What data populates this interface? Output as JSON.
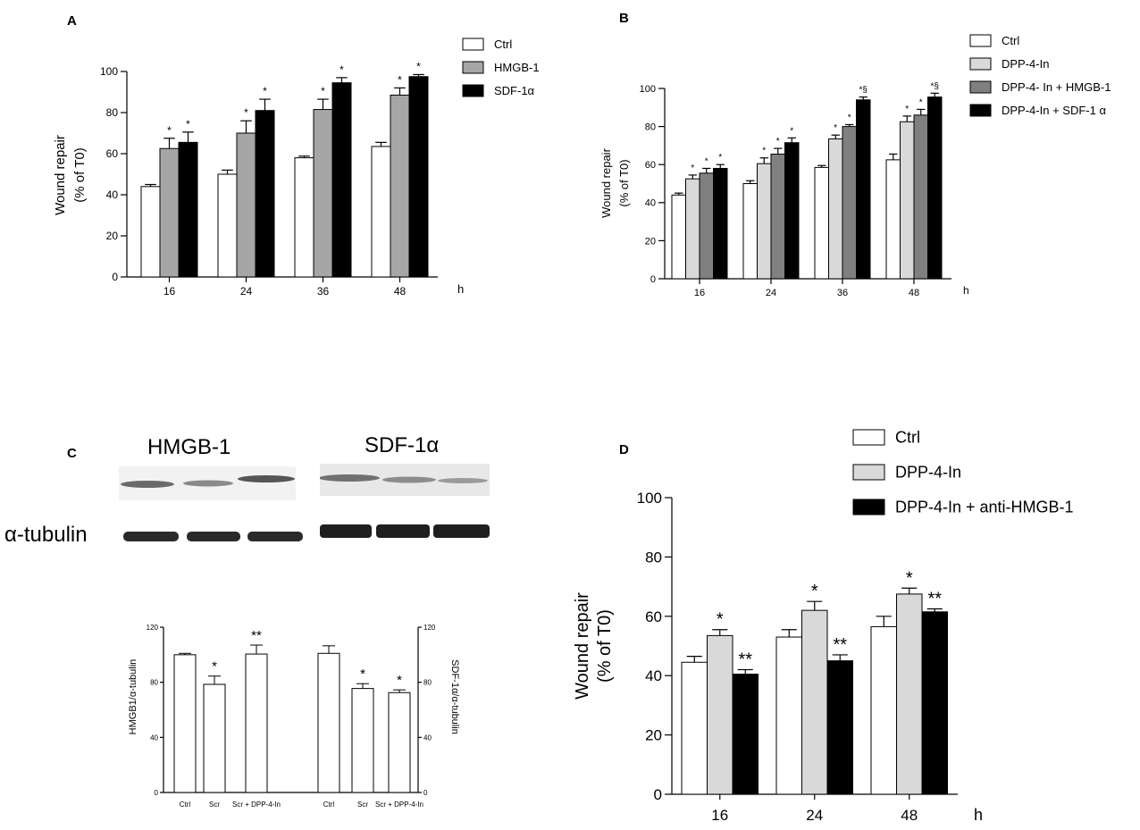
{
  "chart_data": [
    {
      "id": "A",
      "panel_label": "A",
      "type": "bar",
      "categories": [
        "16",
        "24",
        "36",
        "48"
      ],
      "series": [
        {
          "name": "Ctrl",
          "color": "#ffffff",
          "values": [
            44,
            50,
            58,
            63.5
          ],
          "errors": [
            1,
            2,
            0.8,
            2
          ],
          "sig": [
            "",
            "",
            "",
            ""
          ]
        },
        {
          "name": "HMGB-1",
          "color": "#a6a6a6",
          "values": [
            62.5,
            70,
            81.5,
            88.5
          ],
          "errors": [
            5,
            6,
            5,
            3.5
          ],
          "sig": [
            "*",
            "*",
            "*",
            "*"
          ]
        },
        {
          "name": "SDF-1α",
          "color": "#000000",
          "values": [
            65.5,
            81,
            94.5,
            97.5
          ],
          "errors": [
            5,
            5.5,
            2.5,
            1
          ],
          "sig": [
            "*",
            "*",
            "*",
            "*"
          ]
        }
      ],
      "xlabel": "h",
      "ylabel": [
        "Wound repair",
        "(% of T0)"
      ],
      "ylim": [
        0,
        100
      ],
      "yticks": [
        "0",
        "20",
        "40",
        "60",
        "80",
        "100"
      ],
      "legend": "top-right"
    },
    {
      "id": "B",
      "panel_label": "B",
      "type": "bar",
      "categories": [
        "16",
        "24",
        "36",
        "48"
      ],
      "series": [
        {
          "name": "Ctrl",
          "color": "#ffffff",
          "values": [
            44,
            50,
            58.5,
            62.5
          ],
          "errors": [
            1,
            1.5,
            1,
            3
          ],
          "sig": [
            "",
            "",
            "",
            ""
          ]
        },
        {
          "name": "DPP-4-In",
          "color": "#d9d9d9",
          "values": [
            52.5,
            60.5,
            73.5,
            82.5
          ],
          "errors": [
            2,
            3,
            2,
            3
          ],
          "sig": [
            "*",
            "*",
            "*",
            "*"
          ]
        },
        {
          "name": "DPP-4- In + HMGB-1",
          "color": "#808080",
          "values": [
            55.5,
            65.5,
            80,
            86
          ],
          "errors": [
            2.5,
            3,
            1,
            3
          ],
          "sig": [
            "*",
            "*",
            "*",
            "*"
          ]
        },
        {
          "name": "DPP-4-In + SDF-1 α",
          "color": "#000000",
          "values": [
            58,
            71.5,
            94,
            95.5
          ],
          "errors": [
            2,
            2.5,
            1.5,
            2
          ],
          "sig": [
            "*",
            "*",
            "*§",
            "*§"
          ]
        }
      ],
      "xlabel": "h",
      "ylabel": [
        "Wound repair",
        "(% of T0)"
      ],
      "ylim": [
        0,
        100
      ],
      "yticks": [
        "0",
        "20",
        "40",
        "60",
        "80",
        "100"
      ],
      "legend": "top-right"
    },
    {
      "id": "C",
      "panel_label": "C",
      "type": "bar",
      "categories": [
        "Ctrl",
        "Scr",
        "Scr + DPP-4-In",
        "Ctrl",
        "Scr",
        "Scr + DPP-4-In"
      ],
      "values": [
        100,
        78.5,
        100.5,
        101,
        75.5,
        72.5
      ],
      "errors": [
        1,
        6,
        6.5,
        5.5,
        3.5,
        2
      ],
      "sig": [
        "",
        "*",
        "**",
        "",
        "*",
        "*"
      ],
      "ylabel_left": "HMGB1/α-tubulin",
      "ylabel_right": "SDF-1α/α-tubulin",
      "ylim": [
        0,
        120
      ],
      "yticks": [
        "0",
        "40",
        "80",
        "120"
      ],
      "blot_labels": {
        "left": "HMGB-1",
        "right": "SDF-1α",
        "loading": "α-tubulin"
      }
    },
    {
      "id": "D",
      "panel_label": "D",
      "type": "bar",
      "categories": [
        "16",
        "24",
        "48"
      ],
      "series": [
        {
          "name": "Ctrl",
          "color": "#ffffff",
          "values": [
            44.5,
            53,
            56.5
          ],
          "errors": [
            2,
            2.5,
            3.5
          ],
          "sig": [
            "",
            "",
            ""
          ]
        },
        {
          "name": "DPP-4-In",
          "color": "#d9d9d9",
          "values": [
            53.5,
            62,
            67.5
          ],
          "errors": [
            2,
            3,
            2
          ],
          "sig": [
            "*",
            "*",
            "*"
          ]
        },
        {
          "name": "DPP-4-In  + anti-HMGB-1",
          "color": "#000000",
          "values": [
            40.5,
            45,
            61.5
          ],
          "errors": [
            1.5,
            2,
            1
          ],
          "sig": [
            "**",
            "**",
            "**"
          ]
        }
      ],
      "xlabel": "h",
      "ylabel": [
        "Wound repair",
        "(% of T0)"
      ],
      "ylim": [
        0,
        100
      ],
      "yticks": [
        "0",
        "20",
        "40",
        "60",
        "80",
        "100"
      ],
      "legend": "top-right"
    }
  ]
}
